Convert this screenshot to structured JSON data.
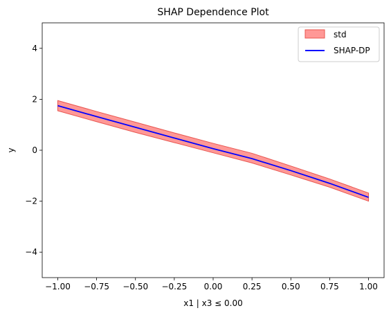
{
  "chart_data": {
    "type": "line",
    "title": "SHAP Dependence Plot",
    "xlabel": "x1 | x3 ≤ 0.00",
    "ylabel": "y",
    "xlim": [
      -1.1,
      1.1
    ],
    "ylim": [
      -5,
      5
    ],
    "xticks": [
      -1.0,
      -0.75,
      -0.5,
      -0.25,
      0.0,
      0.25,
      0.5,
      0.75,
      1.0
    ],
    "xtick_labels": [
      "−1.00",
      "−0.75",
      "−0.50",
      "−0.25",
      "0.00",
      "0.25",
      "0.50",
      "0.75",
      "1.00"
    ],
    "yticks": [
      -4,
      -2,
      0,
      2,
      4
    ],
    "ytick_labels": [
      "−4",
      "−2",
      "0",
      "2",
      "4"
    ],
    "grid": false,
    "legend_position": "top-right",
    "x": [
      -1.0,
      -0.75,
      -0.5,
      -0.25,
      0.0,
      0.25,
      0.5,
      0.75,
      1.0
    ],
    "series": [
      {
        "name": "std",
        "kind": "band",
        "color": "#ff9896",
        "edge_color": "#e8564f",
        "lower": [
          1.55,
          1.12,
          0.7,
          0.3,
          -0.1,
          -0.5,
          -0.97,
          -1.45,
          -2.0
        ],
        "upper": [
          1.95,
          1.52,
          1.1,
          0.68,
          0.27,
          -0.12,
          -0.62,
          -1.13,
          -1.68
        ]
      },
      {
        "name": "SHAP-DP",
        "kind": "line",
        "color": "#0000ff",
        "values": [
          1.75,
          1.32,
          0.9,
          0.48,
          0.06,
          -0.33,
          -0.8,
          -1.3,
          -1.85
        ]
      }
    ]
  }
}
